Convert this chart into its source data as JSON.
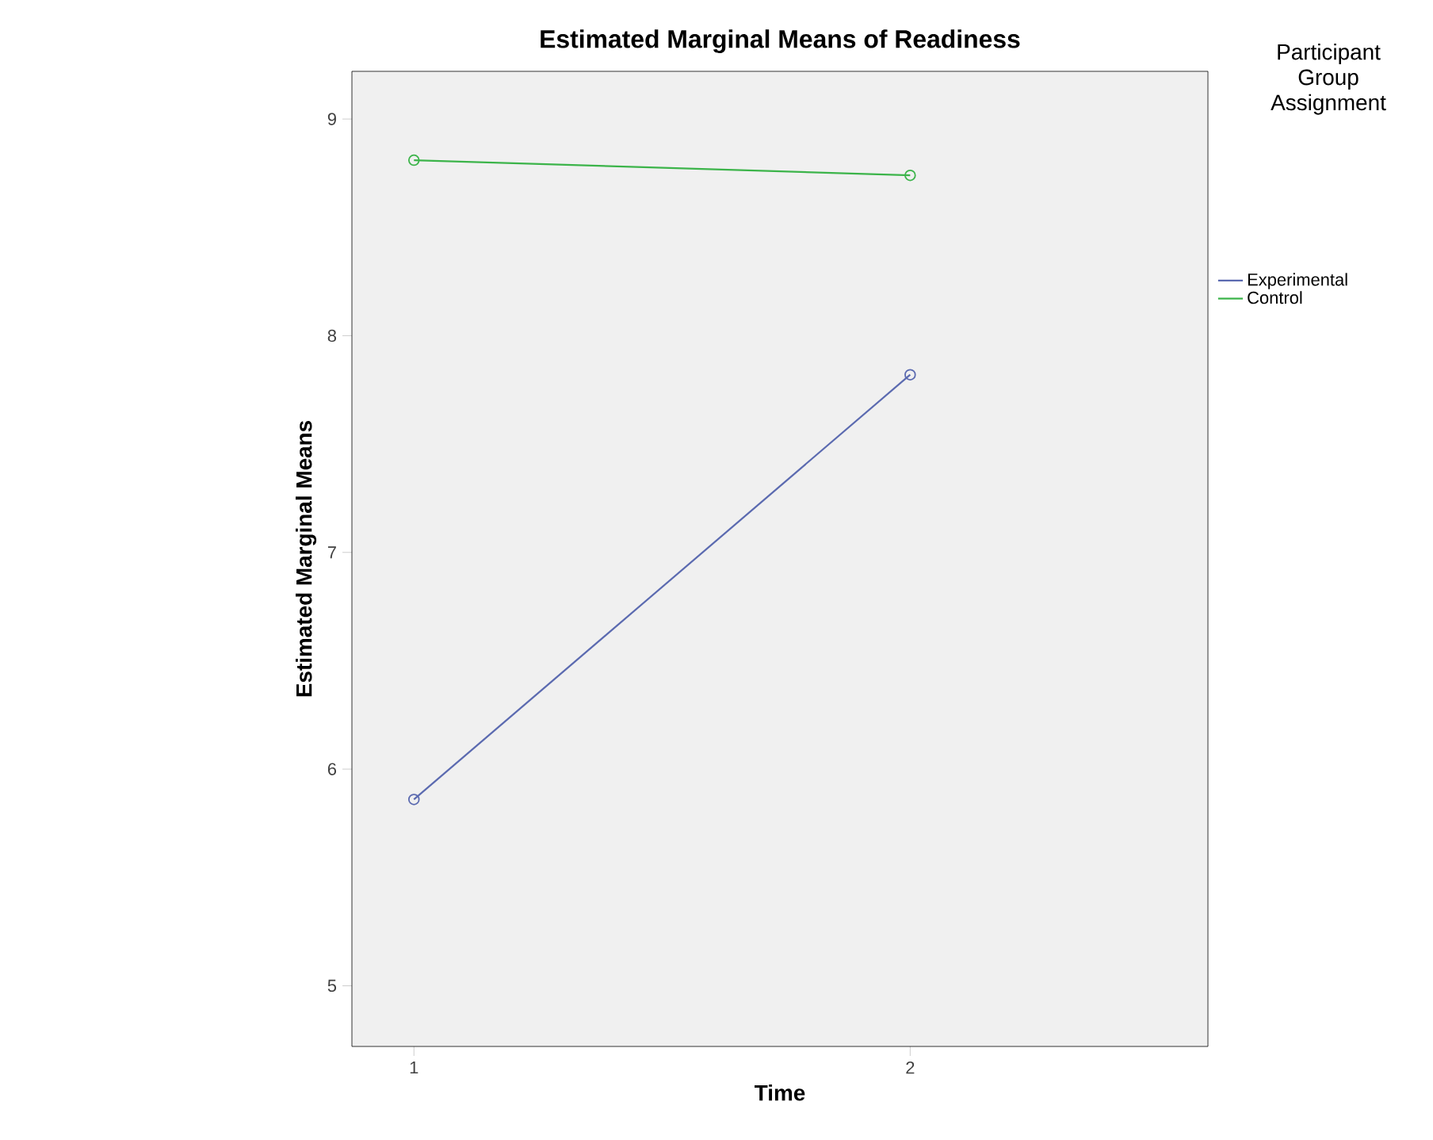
{
  "chart_data": {
    "type": "line",
    "title": "Estimated Marginal Means of Readiness",
    "xlabel": "Time",
    "ylabel": "Estimated Marginal Means",
    "legend_title": "Participant Group Assignment",
    "x": [
      1,
      2
    ],
    "series": [
      {
        "name": "Experimental",
        "color": "#5b6ab0",
        "values": [
          5.86,
          7.82
        ]
      },
      {
        "name": "Control",
        "color": "#3cb44a",
        "values": [
          8.81,
          8.74
        ]
      }
    ],
    "xlim": [
      0.875,
      2.6
    ],
    "xticks": [
      1,
      2
    ],
    "ylim": [
      4.72,
      9.22
    ],
    "yticks": [
      5,
      6,
      7,
      8,
      9
    ],
    "grid": false,
    "legend": "right",
    "marker": "circle",
    "line_style": "solid"
  }
}
